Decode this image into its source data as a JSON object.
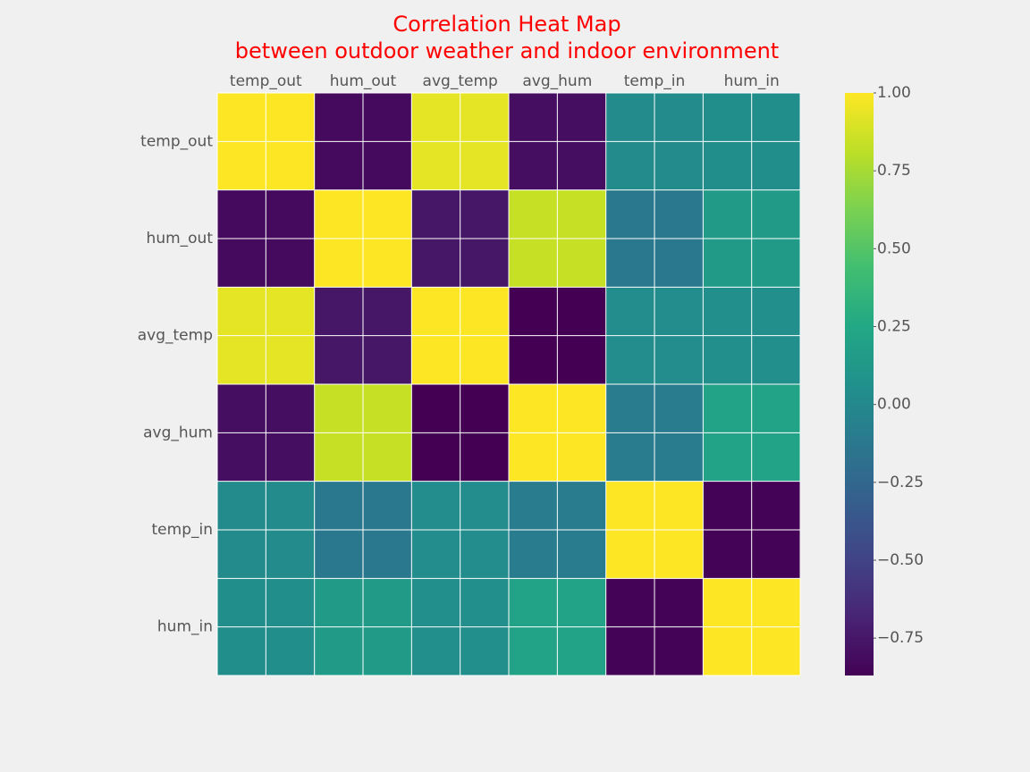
{
  "chart_data": {
    "type": "heatmap",
    "title": "Correlation Heat Map",
    "subtitle": "between outdoor weather and indoor environment",
    "columns": [
      "temp_out",
      "hum_out",
      "avg_temp",
      "avg_hum",
      "temp_in",
      "hum_in"
    ],
    "rows": [
      "temp_out",
      "hum_out",
      "avg_temp",
      "avg_hum",
      "temp_in",
      "hum_in"
    ],
    "matrix": [
      [
        1.0,
        -0.82,
        0.93,
        -0.8,
        0.02,
        0.04
      ],
      [
        -0.82,
        1.0,
        -0.76,
        0.84,
        -0.12,
        0.15
      ],
      [
        0.93,
        -0.76,
        1.0,
        -0.87,
        0.03,
        0.05
      ],
      [
        -0.8,
        0.84,
        -0.87,
        1.0,
        -0.1,
        0.2
      ],
      [
        0.02,
        -0.12,
        0.03,
        -0.1,
        1.0,
        -0.86
      ],
      [
        0.04,
        0.15,
        0.05,
        0.2,
        -0.86,
        1.0
      ]
    ],
    "colormap": "viridis",
    "vmin": -0.87,
    "vmax": 1.0,
    "colorbar_ticks": [
      1.0,
      0.75,
      0.5,
      0.25,
      0.0,
      -0.25,
      -0.5,
      -0.75
    ],
    "colorbar_tick_labels": [
      "1.00",
      "0.75",
      "0.50",
      "0.25",
      "0.00",
      "−0.25",
      "−0.50",
      "−0.75"
    ],
    "grid": true,
    "x_ticks_position": "top",
    "colors": {
      "title": "#ff0000",
      "tick_text": "#555555",
      "background": "#f0f0f0",
      "grid": "#ffffff"
    }
  }
}
